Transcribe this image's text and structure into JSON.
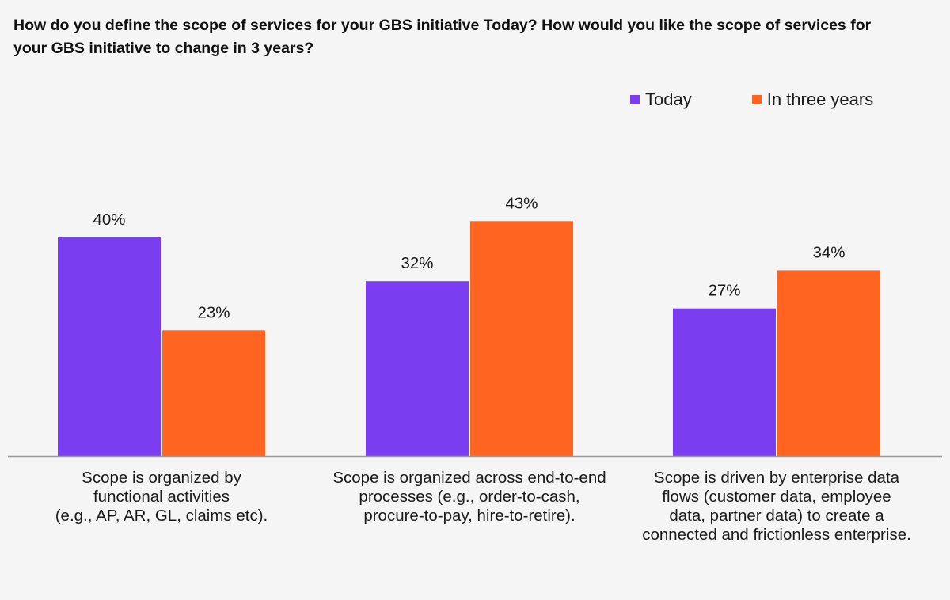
{
  "chart_data": {
    "type": "bar",
    "title": "How do you define the scope of services for your GBS initiative Today? How would you like the scope of services for your GBS initiative to change in 3 years?",
    "categories": [
      "Scope is organized by\nfunctional activities\n(e.g., AP, AR, GL, claims etc).",
      "Scope is organized across end-to-end\nprocesses (e.g., order-to-cash,\nprocure-to-pay, hire-to-retire).",
      "Scope is driven by enterprise data\nflows (customer data, employee\ndata, partner data) to create a\nconnected and frictionless enterprise."
    ],
    "series": [
      {
        "name": "Today",
        "values": [
          40,
          32,
          27
        ],
        "color": "#7a3ef0",
        "labels": [
          "40%",
          "32%",
          "27%"
        ]
      },
      {
        "name": "In three years",
        "values": [
          23,
          43,
          34
        ],
        "color": "#ff6420",
        "labels": [
          "23%",
          "43%",
          "34%"
        ]
      }
    ],
    "ylim": [
      0,
      50
    ],
    "grid": false,
    "legend_position": "top-right",
    "baseline_color": "#9a9a9a"
  }
}
